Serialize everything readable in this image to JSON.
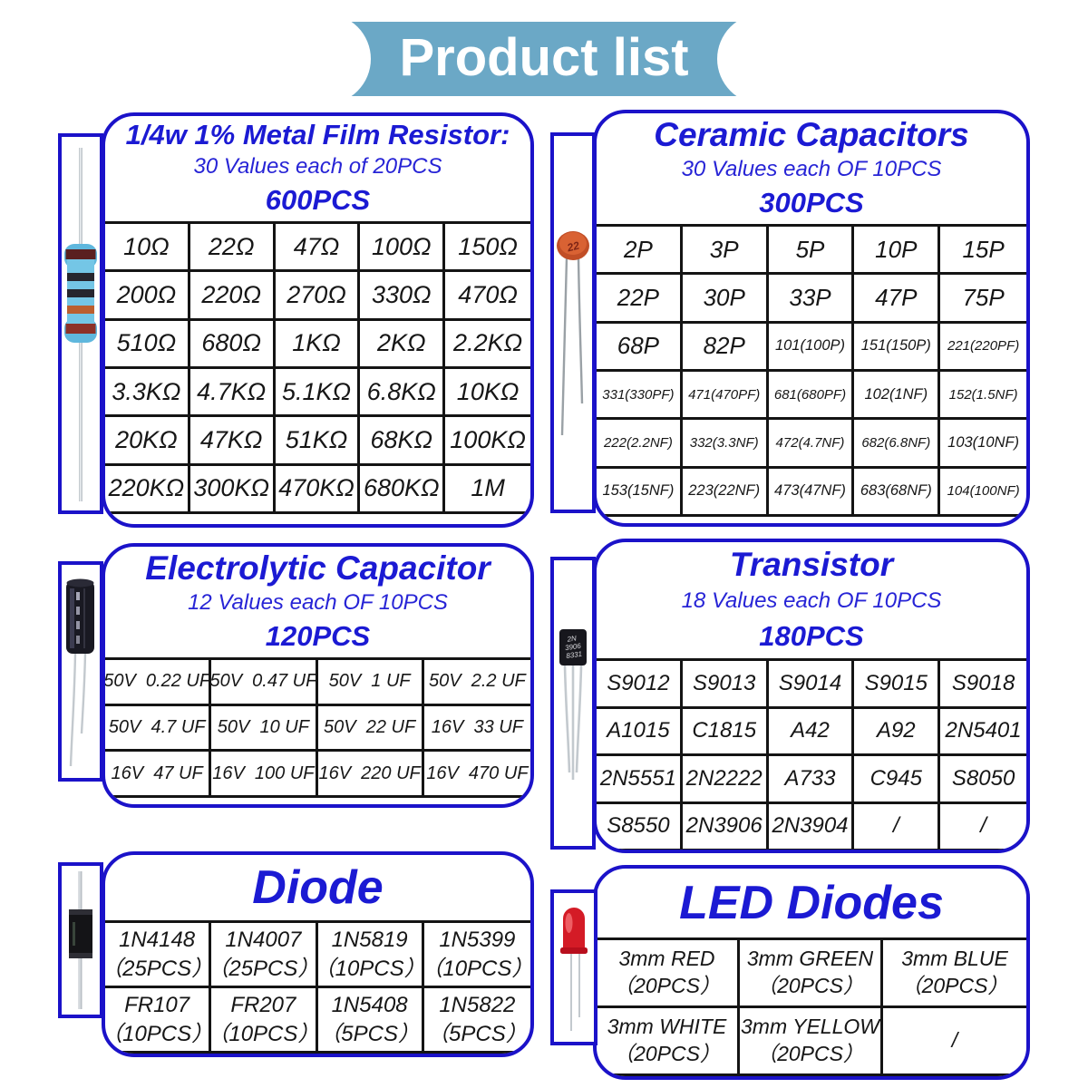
{
  "banner": {
    "title": "Product list"
  },
  "colors": {
    "panel_border": "#1b12c9",
    "title_text": "#1b1ad3",
    "banner_bg": "#6ba8c6",
    "table_line": "#141414",
    "cell_text": "#161616"
  },
  "panels": {
    "resistor": {
      "title": "1/4w 1% Metal Film Resistor:",
      "subtitle": "30 Values each of 20PCS",
      "total": "600PCS",
      "values": [
        "10Ω",
        "22Ω",
        "47Ω",
        "100Ω",
        "150Ω",
        "200Ω",
        "220Ω",
        "270Ω",
        "330Ω",
        "470Ω",
        "510Ω",
        "680Ω",
        "1KΩ",
        "2KΩ",
        "2.2KΩ",
        "3.3KΩ",
        "4.7KΩ",
        "5.1KΩ",
        "6.8KΩ",
        "10KΩ",
        "20KΩ",
        "47KΩ",
        "51KΩ",
        "68KΩ",
        "100KΩ",
        "220KΩ",
        "300KΩ",
        "470KΩ",
        "680KΩ",
        "1M"
      ]
    },
    "ceramic": {
      "title": "Ceramic Capacitors",
      "subtitle": "30 Values each OF 10PCS",
      "total": "300PCS",
      "photo_label": "22",
      "values": [
        "2P",
        "3P",
        "5P",
        "10P",
        "15P",
        "22P",
        "30P",
        "33P",
        "47P",
        "75P",
        "68P",
        "82P",
        "101(100P)",
        "151(150P)",
        "221(220PF)",
        "331(330PF)",
        "471(470PF)",
        "681(680PF)",
        "102(1NF)",
        "152(1.5NF)",
        "222(2.2NF)",
        "332(3.3NF)",
        "472(4.7NF)",
        "682(6.8NF)",
        "103(10NF)",
        "153(15NF)",
        "223(22NF)",
        "473(47NF)",
        "683(68NF)",
        "104(100NF)"
      ]
    },
    "electrolytic": {
      "title": "Electrolytic Capacitor",
      "subtitle": "12 Values each OF 10PCS",
      "total": "120PCS",
      "values": [
        "50V  0.22 UF",
        "50V  0.47 UF",
        "50V  1 UF",
        "50V  2.2 UF",
        "50V  4.7 UF",
        "50V  10 UF",
        "50V  22 UF",
        "16V  33 UF",
        "16V  47 UF",
        "16V  100 UF",
        "16V  220 UF",
        "16V  470 UF"
      ]
    },
    "transistor": {
      "title": "Transistor",
      "subtitle": "18 Values each OF 10PCS",
      "total": "180PCS",
      "photo_label_lines": [
        "2N",
        "3906",
        "8331"
      ],
      "values": [
        "S9012",
        "S9013",
        "S9014",
        "S9015",
        "S9018",
        "A1015",
        "C1815",
        "A42",
        "A92",
        "2N5401",
        "2N5551",
        "2N2222",
        "A733",
        "C945",
        "S8050",
        "S8550",
        "2N3906",
        "2N3904",
        "/",
        "/"
      ]
    },
    "diode": {
      "title": "Diode",
      "values": [
        {
          "name": "1N4148",
          "qty": "（25PCS）"
        },
        {
          "name": "1N4007",
          "qty": "（25PCS）"
        },
        {
          "name": "1N5819",
          "qty": "（10PCS）"
        },
        {
          "name": "1N5399",
          "qty": "（10PCS）"
        },
        {
          "name": "FR107",
          "qty": "（10PCS）"
        },
        {
          "name": "FR207",
          "qty": "（10PCS）"
        },
        {
          "name": "1N5408",
          "qty": "（5PCS）"
        },
        {
          "name": "1N5822",
          "qty": "（5PCS）"
        }
      ]
    },
    "led": {
      "title": "LED Diodes",
      "values": [
        {
          "name": "3mm RED",
          "qty": "（20PCS）"
        },
        {
          "name": "3mm GREEN",
          "qty": "（20PCS）"
        },
        {
          "name": "3mm BLUE",
          "qty": "（20PCS）"
        },
        {
          "name": "3mm WHITE",
          "qty": "（20PCS）"
        },
        {
          "name": "3mm YELLOW",
          "qty": "（20PCS）"
        },
        "/"
      ]
    }
  }
}
